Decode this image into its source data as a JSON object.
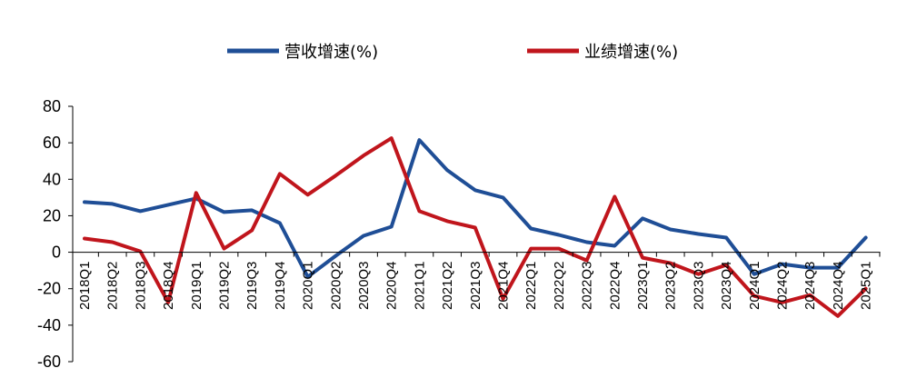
{
  "chart_data": {
    "type": "line",
    "categories": [
      "2018Q1",
      "2018Q2",
      "2018Q3",
      "2018Q4",
      "2019Q1",
      "2019Q2",
      "2019Q3",
      "2019Q4",
      "2020Q1",
      "2020Q2",
      "2020Q3",
      "2020Q4",
      "2021Q1",
      "2021Q2",
      "2021Q3",
      "2021Q4",
      "2022Q1",
      "2022Q2",
      "2022Q3",
      "2022Q4",
      "2023Q1",
      "2023Q2",
      "2023Q3",
      "2023Q4",
      "2024Q1",
      "2024Q2",
      "2024Q3",
      "2024Q4",
      "2025Q1"
    ],
    "series": [
      {
        "name": "营收增速(%)",
        "color": "#1f4e96",
        "values": [
          27.5,
          26.5,
          22.5,
          26,
          29.5,
          22,
          23,
          16,
          -13.5,
          -2,
          9,
          14,
          61.5,
          45,
          34,
          30,
          13,
          9.5,
          5.5,
          3.5,
          18.5,
          12.5,
          10,
          8,
          -12,
          -6.5,
          -8.5,
          -8.5,
          8
        ]
      },
      {
        "name": "业绩增速(%)",
        "color": "#c0151c",
        "values": [
          7.5,
          5.5,
          0.5,
          -27.5,
          32.5,
          2,
          12,
          43,
          31.5,
          42,
          53,
          62.5,
          22.5,
          17,
          13.5,
          -25.5,
          2,
          2,
          -4.5,
          30.5,
          -3,
          -6,
          -12,
          -7,
          -24,
          -27.5,
          -23.5,
          -35,
          -20
        ]
      }
    ],
    "xlabel": "",
    "ylabel": "",
    "ylim": [
      -60,
      80
    ],
    "yticks": [
      80,
      60,
      40,
      20,
      0,
      -20,
      -40,
      -60
    ],
    "grid": false,
    "legend": "top-center"
  }
}
